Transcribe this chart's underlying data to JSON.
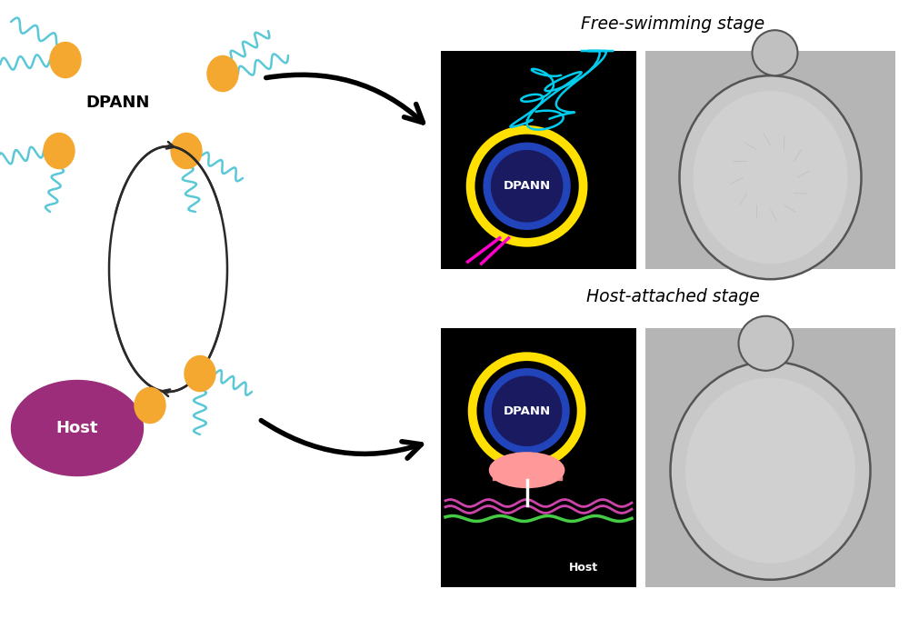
{
  "free_swimming_label": "Free-swimming stage",
  "host_attached_label": "Host-attached stage",
  "dpann_label": "DPANN",
  "host_label": "Host",
  "background_color": "#ffffff",
  "orange_color": "#F5A830",
  "cyan_color": "#5BC8D8",
  "host_color": "#9B2D7A",
  "cycle_arrow_color": "#2a2a2a",
  "black_bg": "#000000",
  "gray_bg": "#b8b8b8",
  "yellow_ring": "#FFE000",
  "blue_ring": "#2244BB",
  "dark_blue_fill": "#1a1a60",
  "magenta_line": "#FF00CC",
  "cyan_flagella": "#00CCEE",
  "green_host_line": "#44CC44",
  "pink_attach": "#FF9999"
}
